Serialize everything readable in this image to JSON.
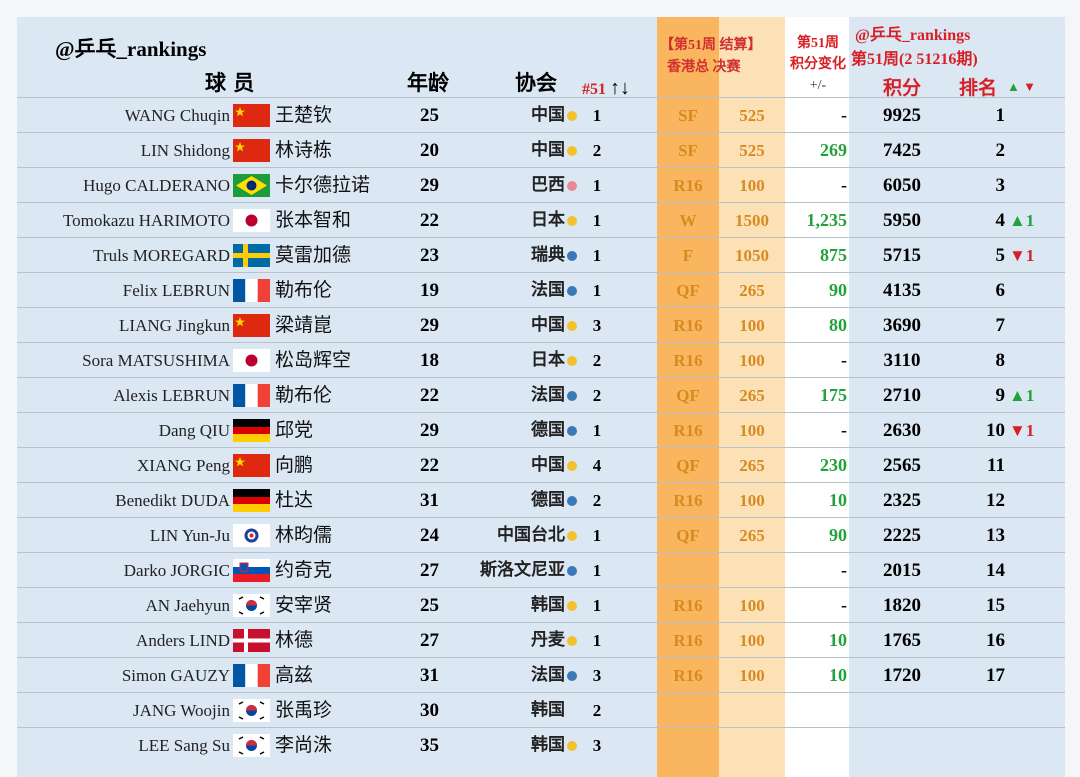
{
  "header": {
    "watermark": "@乒乓_rankings",
    "player": "球 员",
    "age": "年龄",
    "assoc": "协会",
    "week51": "#51",
    "sort_arrows": "↑↓",
    "event_line1a": "【第51周",
    "event_line1b": "结算】",
    "event_line2a": "香港总",
    "event_line2b": "决赛",
    "change_line1": "第51周",
    "change_line2": "积分变化",
    "change_line3": "+/-",
    "rank_watermark": "@乒乓_rankings",
    "rank_period": "第51周(2 51216期)",
    "points": "积分",
    "rank": "排名",
    "up_symbol": "▲",
    "down_symbol": "▼"
  },
  "colors": {
    "orange_dark": "#f9b65e",
    "orange_light": "#fde1b6",
    "blue_bg": "#dbe8f4",
    "up": "#22a23a",
    "down": "#d71f26",
    "title_red": "#c8202a"
  },
  "rows": [
    {
      "en": "WANG Chuqin",
      "flag": "china",
      "cn": "王楚钦",
      "age": "25",
      "assoc": "中国",
      "dot": "#f2c12e",
      "w51": "1",
      "res": "SF",
      "pts": "525",
      "chg": "-",
      "tot": "9925",
      "rank": "1",
      "mv": ""
    },
    {
      "en": "LIN Shidong",
      "flag": "china",
      "cn": "林诗栋",
      "age": "20",
      "assoc": "中国",
      "dot": "#f2c12e",
      "w51": "2",
      "res": "SF",
      "pts": "525",
      "chg": "269",
      "tot": "7425",
      "rank": "2",
      "mv": ""
    },
    {
      "en": "Hugo CALDERANO",
      "flag": "brazil",
      "cn": "卡尔德拉诺",
      "age": "29",
      "assoc": "巴西",
      "dot": "#e88a96",
      "w51": "1",
      "res": "R16",
      "pts": "100",
      "chg": "-",
      "tot": "6050",
      "rank": "3",
      "mv": ""
    },
    {
      "en": "Tomokazu HARIMOTO",
      "flag": "japan",
      "cn": "张本智和",
      "age": "22",
      "assoc": "日本",
      "dot": "#f2c12e",
      "w51": "1",
      "res": "W",
      "pts": "1500",
      "chg": "1,235",
      "tot": "5950",
      "rank": "4",
      "mv": "▲1",
      "dir": "up"
    },
    {
      "en": "Truls MOREGARD",
      "flag": "sweden",
      "cn": "莫雷加德",
      "age": "23",
      "assoc": "瑞典",
      "dot": "#3a78b8",
      "w51": "1",
      "res": "F",
      "pts": "1050",
      "chg": "875",
      "tot": "5715",
      "rank": "5",
      "mv": "▼1",
      "dir": "down"
    },
    {
      "en": "Felix LEBRUN",
      "flag": "france",
      "cn": "勒布伦",
      "age": "19",
      "assoc": "法国",
      "dot": "#3a78b8",
      "w51": "1",
      "res": "QF",
      "pts": "265",
      "chg": "90",
      "tot": "4135",
      "rank": "6",
      "mv": ""
    },
    {
      "en": "LIANG Jingkun",
      "flag": "china",
      "cn": "梁靖崑",
      "age": "29",
      "assoc": "中国",
      "dot": "#f2c12e",
      "w51": "3",
      "res": "R16",
      "pts": "100",
      "chg": "80",
      "tot": "3690",
      "rank": "7",
      "mv": ""
    },
    {
      "en": "Sora MATSUSHIMA",
      "flag": "japan",
      "cn": "松岛辉空",
      "age": "18",
      "assoc": "日本",
      "dot": "#f2c12e",
      "w51": "2",
      "res": "R16",
      "pts": "100",
      "chg": "-",
      "tot": "3110",
      "rank": "8",
      "mv": ""
    },
    {
      "en": "Alexis LEBRUN",
      "flag": "france",
      "cn": "勒布伦",
      "age": "22",
      "assoc": "法国",
      "dot": "#3a78b8",
      "w51": "2",
      "res": "QF",
      "pts": "265",
      "chg": "175",
      "tot": "2710",
      "rank": "9",
      "mv": "▲1",
      "dir": "up"
    },
    {
      "en": "Dang QIU",
      "flag": "germany",
      "cn": "邱党",
      "age": "29",
      "assoc": "德国",
      "dot": "#3a78b8",
      "w51": "1",
      "res": "R16",
      "pts": "100",
      "chg": "-",
      "tot": "2630",
      "rank": "10",
      "mv": "▼1",
      "dir": "down"
    },
    {
      "en": "XIANG Peng",
      "flag": "china",
      "cn": "向鹏",
      "age": "22",
      "assoc": "中国",
      "dot": "#f2c12e",
      "w51": "4",
      "res": "QF",
      "pts": "265",
      "chg": "230",
      "tot": "2565",
      "rank": "11",
      "mv": ""
    },
    {
      "en": "Benedikt DUDA",
      "flag": "germany",
      "cn": "杜达",
      "age": "31",
      "assoc": "德国",
      "dot": "#3a78b8",
      "w51": "2",
      "res": "R16",
      "pts": "100",
      "chg": "10",
      "tot": "2325",
      "rank": "12",
      "mv": ""
    },
    {
      "en": "LIN Yun-Ju",
      "flag": "taipei",
      "cn": "林昀儒",
      "age": "24",
      "assoc": "中国台北",
      "dot": "#f2c12e",
      "w51": "1",
      "res": "QF",
      "pts": "265",
      "chg": "90",
      "tot": "2225",
      "rank": "13",
      "mv": ""
    },
    {
      "en": "Darko JORGIC",
      "flag": "slovenia",
      "cn": "约奇克",
      "age": "27",
      "assoc": "斯洛文尼亚",
      "dot": "#3a78b8",
      "w51": "1",
      "res": "",
      "pts": "",
      "chg": "-",
      "tot": "2015",
      "rank": "14",
      "mv": ""
    },
    {
      "en": "AN Jaehyun",
      "flag": "korea",
      "cn": "安宰贤",
      "age": "25",
      "assoc": "韩国",
      "dot": "#f2c12e",
      "w51": "1",
      "res": "R16",
      "pts": "100",
      "chg": "-",
      "tot": "1820",
      "rank": "15",
      "mv": ""
    },
    {
      "en": "Anders LIND",
      "flag": "denmark",
      "cn": "林德",
      "age": "27",
      "assoc": "丹麦",
      "dot": "#f2c12e",
      "w51": "1",
      "res": "R16",
      "pts": "100",
      "chg": "10",
      "tot": "1765",
      "rank": "16",
      "mv": ""
    },
    {
      "en": "Simon GAUZY",
      "flag": "france",
      "cn": "高兹",
      "age": "31",
      "assoc": "法国",
      "dot": "#3a78b8",
      "w51": "3",
      "res": "R16",
      "pts": "100",
      "chg": "10",
      "tot": "1720",
      "rank": "17",
      "mv": ""
    },
    {
      "en": "JANG Woojin",
      "flag": "korea",
      "cn": "张禹珍",
      "age": "30",
      "assoc": "韩国",
      "dot": "",
      "w51": "2",
      "res": "",
      "pts": "",
      "chg": "",
      "tot": "",
      "rank": "",
      "mv": ""
    },
    {
      "en": "LEE Sang Su",
      "flag": "korea",
      "cn": "李尚洙",
      "age": "35",
      "assoc": "韩国",
      "dot": "#f2c12e",
      "w51": "3",
      "res": "",
      "pts": "",
      "chg": "",
      "tot": "",
      "rank": "",
      "mv": ""
    }
  ]
}
